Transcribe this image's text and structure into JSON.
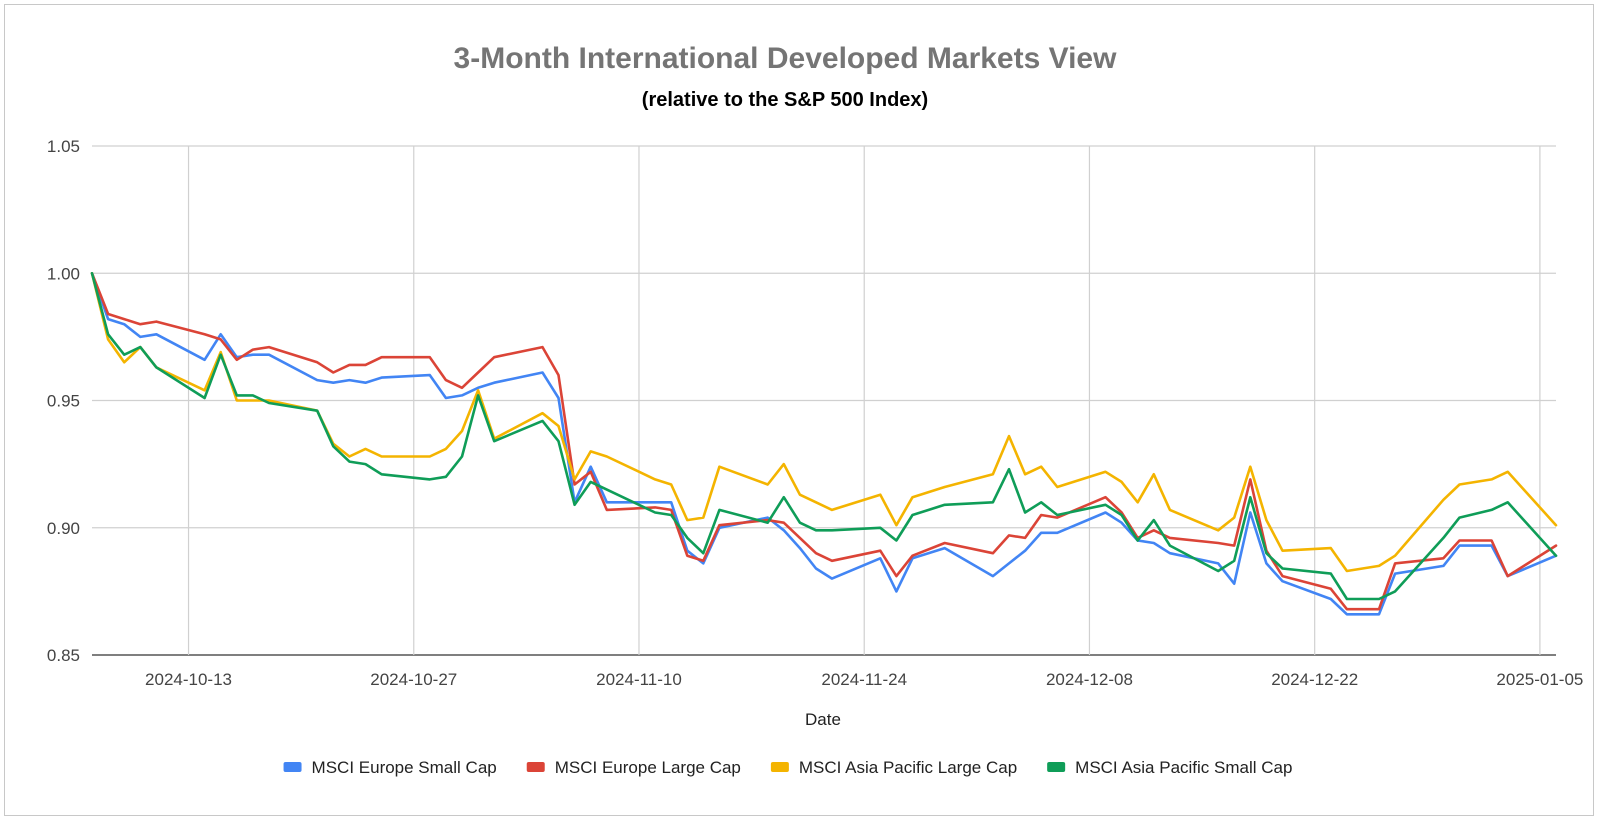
{
  "chart_data": {
    "type": "line",
    "title": "3-Month International Developed Markets View",
    "subtitle": "(relative to the S&P 500 Index)",
    "xlabel": "Date",
    "ylabel": "",
    "xlim": [
      "2024-10-07",
      "2025-01-06"
    ],
    "ylim": [
      0.85,
      1.05
    ],
    "y_ticks": [
      "0.85",
      "0.90",
      "0.95",
      "1.00",
      "1.05"
    ],
    "x_ticks": [
      "2024-10-13",
      "2024-10-27",
      "2024-11-10",
      "2024-11-24",
      "2024-12-08",
      "2024-12-22",
      "2025-01-05"
    ],
    "grid": true,
    "legend_position": "bottom",
    "x": [
      "2024-10-07",
      "2024-10-08",
      "2024-10-09",
      "2024-10-10",
      "2024-10-11",
      "2024-10-14",
      "2024-10-15",
      "2024-10-16",
      "2024-10-17",
      "2024-10-18",
      "2024-10-21",
      "2024-10-22",
      "2024-10-23",
      "2024-10-24",
      "2024-10-25",
      "2024-10-28",
      "2024-10-29",
      "2024-10-30",
      "2024-10-31",
      "2024-11-01",
      "2024-11-04",
      "2024-11-05",
      "2024-11-06",
      "2024-11-07",
      "2024-11-08",
      "2024-11-11",
      "2024-11-12",
      "2024-11-13",
      "2024-11-14",
      "2024-11-15",
      "2024-11-18",
      "2024-11-19",
      "2024-11-20",
      "2024-11-21",
      "2024-11-22",
      "2024-11-25",
      "2024-11-26",
      "2024-11-27",
      "2024-11-29",
      "2024-12-02",
      "2024-12-03",
      "2024-12-04",
      "2024-12-05",
      "2024-12-06",
      "2024-12-09",
      "2024-12-10",
      "2024-12-11",
      "2024-12-12",
      "2024-12-13",
      "2024-12-16",
      "2024-12-17",
      "2024-12-18",
      "2024-12-19",
      "2024-12-20",
      "2024-12-23",
      "2024-12-24",
      "2024-12-26",
      "2024-12-27",
      "2024-12-30",
      "2024-12-31",
      "2025-01-02",
      "2025-01-03",
      "2025-01-06"
    ],
    "series": [
      {
        "name": "MSCI Europe Small Cap",
        "color": "#4285f4",
        "values": [
          1.0,
          0.982,
          0.98,
          0.975,
          0.976,
          0.966,
          0.976,
          0.967,
          0.968,
          0.968,
          0.958,
          0.957,
          0.958,
          0.957,
          0.959,
          0.96,
          0.951,
          0.952,
          0.955,
          0.957,
          0.961,
          0.951,
          0.91,
          0.924,
          0.91,
          0.91,
          0.91,
          0.891,
          0.886,
          0.9,
          0.904,
          0.899,
          0.892,
          0.884,
          0.88,
          0.888,
          0.875,
          0.888,
          0.892,
          0.881,
          0.886,
          0.891,
          0.898,
          0.898,
          0.906,
          0.902,
          0.895,
          0.894,
          0.89,
          0.886,
          0.878,
          0.906,
          0.886,
          0.879,
          0.872,
          0.866,
          0.866,
          0.882,
          0.885,
          0.893,
          0.893,
          0.881,
          0.889
        ]
      },
      {
        "name": "MSCI Europe Large Cap",
        "color": "#db4437",
        "values": [
          1.0,
          0.984,
          0.982,
          0.98,
          0.981,
          0.976,
          0.974,
          0.966,
          0.97,
          0.971,
          0.965,
          0.961,
          0.964,
          0.964,
          0.967,
          0.967,
          0.958,
          0.955,
          0.961,
          0.967,
          0.971,
          0.96,
          0.917,
          0.922,
          0.907,
          0.908,
          0.907,
          0.889,
          0.887,
          0.901,
          0.903,
          0.902,
          0.896,
          0.89,
          0.887,
          0.891,
          0.881,
          0.889,
          0.894,
          0.89,
          0.897,
          0.896,
          0.905,
          0.904,
          0.912,
          0.906,
          0.896,
          0.899,
          0.896,
          0.894,
          0.893,
          0.919,
          0.891,
          0.881,
          0.876,
          0.868,
          0.868,
          0.886,
          0.888,
          0.895,
          0.895,
          0.881,
          0.893
        ]
      },
      {
        "name": "MSCI Asia Pacific Large Cap",
        "color": "#f4b400",
        "values": [
          1.0,
          0.974,
          0.965,
          0.971,
          0.963,
          0.954,
          0.969,
          0.95,
          0.95,
          0.95,
          0.946,
          0.933,
          0.928,
          0.931,
          0.928,
          0.928,
          0.931,
          0.938,
          0.954,
          0.935,
          0.945,
          0.94,
          0.919,
          0.93,
          0.928,
          0.919,
          0.917,
          0.903,
          0.904,
          0.924,
          0.917,
          0.925,
          0.913,
          0.91,
          0.907,
          0.913,
          0.901,
          0.912,
          0.916,
          0.921,
          0.936,
          0.921,
          0.924,
          0.916,
          0.922,
          0.918,
          0.91,
          0.921,
          0.907,
          0.899,
          0.904,
          0.924,
          0.903,
          0.891,
          0.892,
          0.883,
          0.885,
          0.889,
          0.911,
          0.917,
          0.919,
          0.922,
          0.901
        ]
      },
      {
        "name": "MSCI Asia Pacific Small Cap",
        "color": "#0f9d58",
        "values": [
          1.0,
          0.976,
          0.968,
          0.971,
          0.963,
          0.951,
          0.968,
          0.952,
          0.952,
          0.949,
          0.946,
          0.932,
          0.926,
          0.925,
          0.921,
          0.919,
          0.92,
          0.928,
          0.952,
          0.934,
          0.942,
          0.934,
          0.909,
          0.918,
          0.915,
          0.906,
          0.905,
          0.896,
          0.89,
          0.907,
          0.902,
          0.912,
          0.902,
          0.899,
          0.899,
          0.9,
          0.895,
          0.905,
          0.909,
          0.91,
          0.923,
          0.906,
          0.91,
          0.905,
          0.909,
          0.905,
          0.895,
          0.903,
          0.893,
          0.883,
          0.887,
          0.912,
          0.89,
          0.884,
          0.882,
          0.872,
          0.872,
          0.875,
          0.896,
          0.904,
          0.907,
          0.91,
          0.889
        ]
      }
    ]
  }
}
